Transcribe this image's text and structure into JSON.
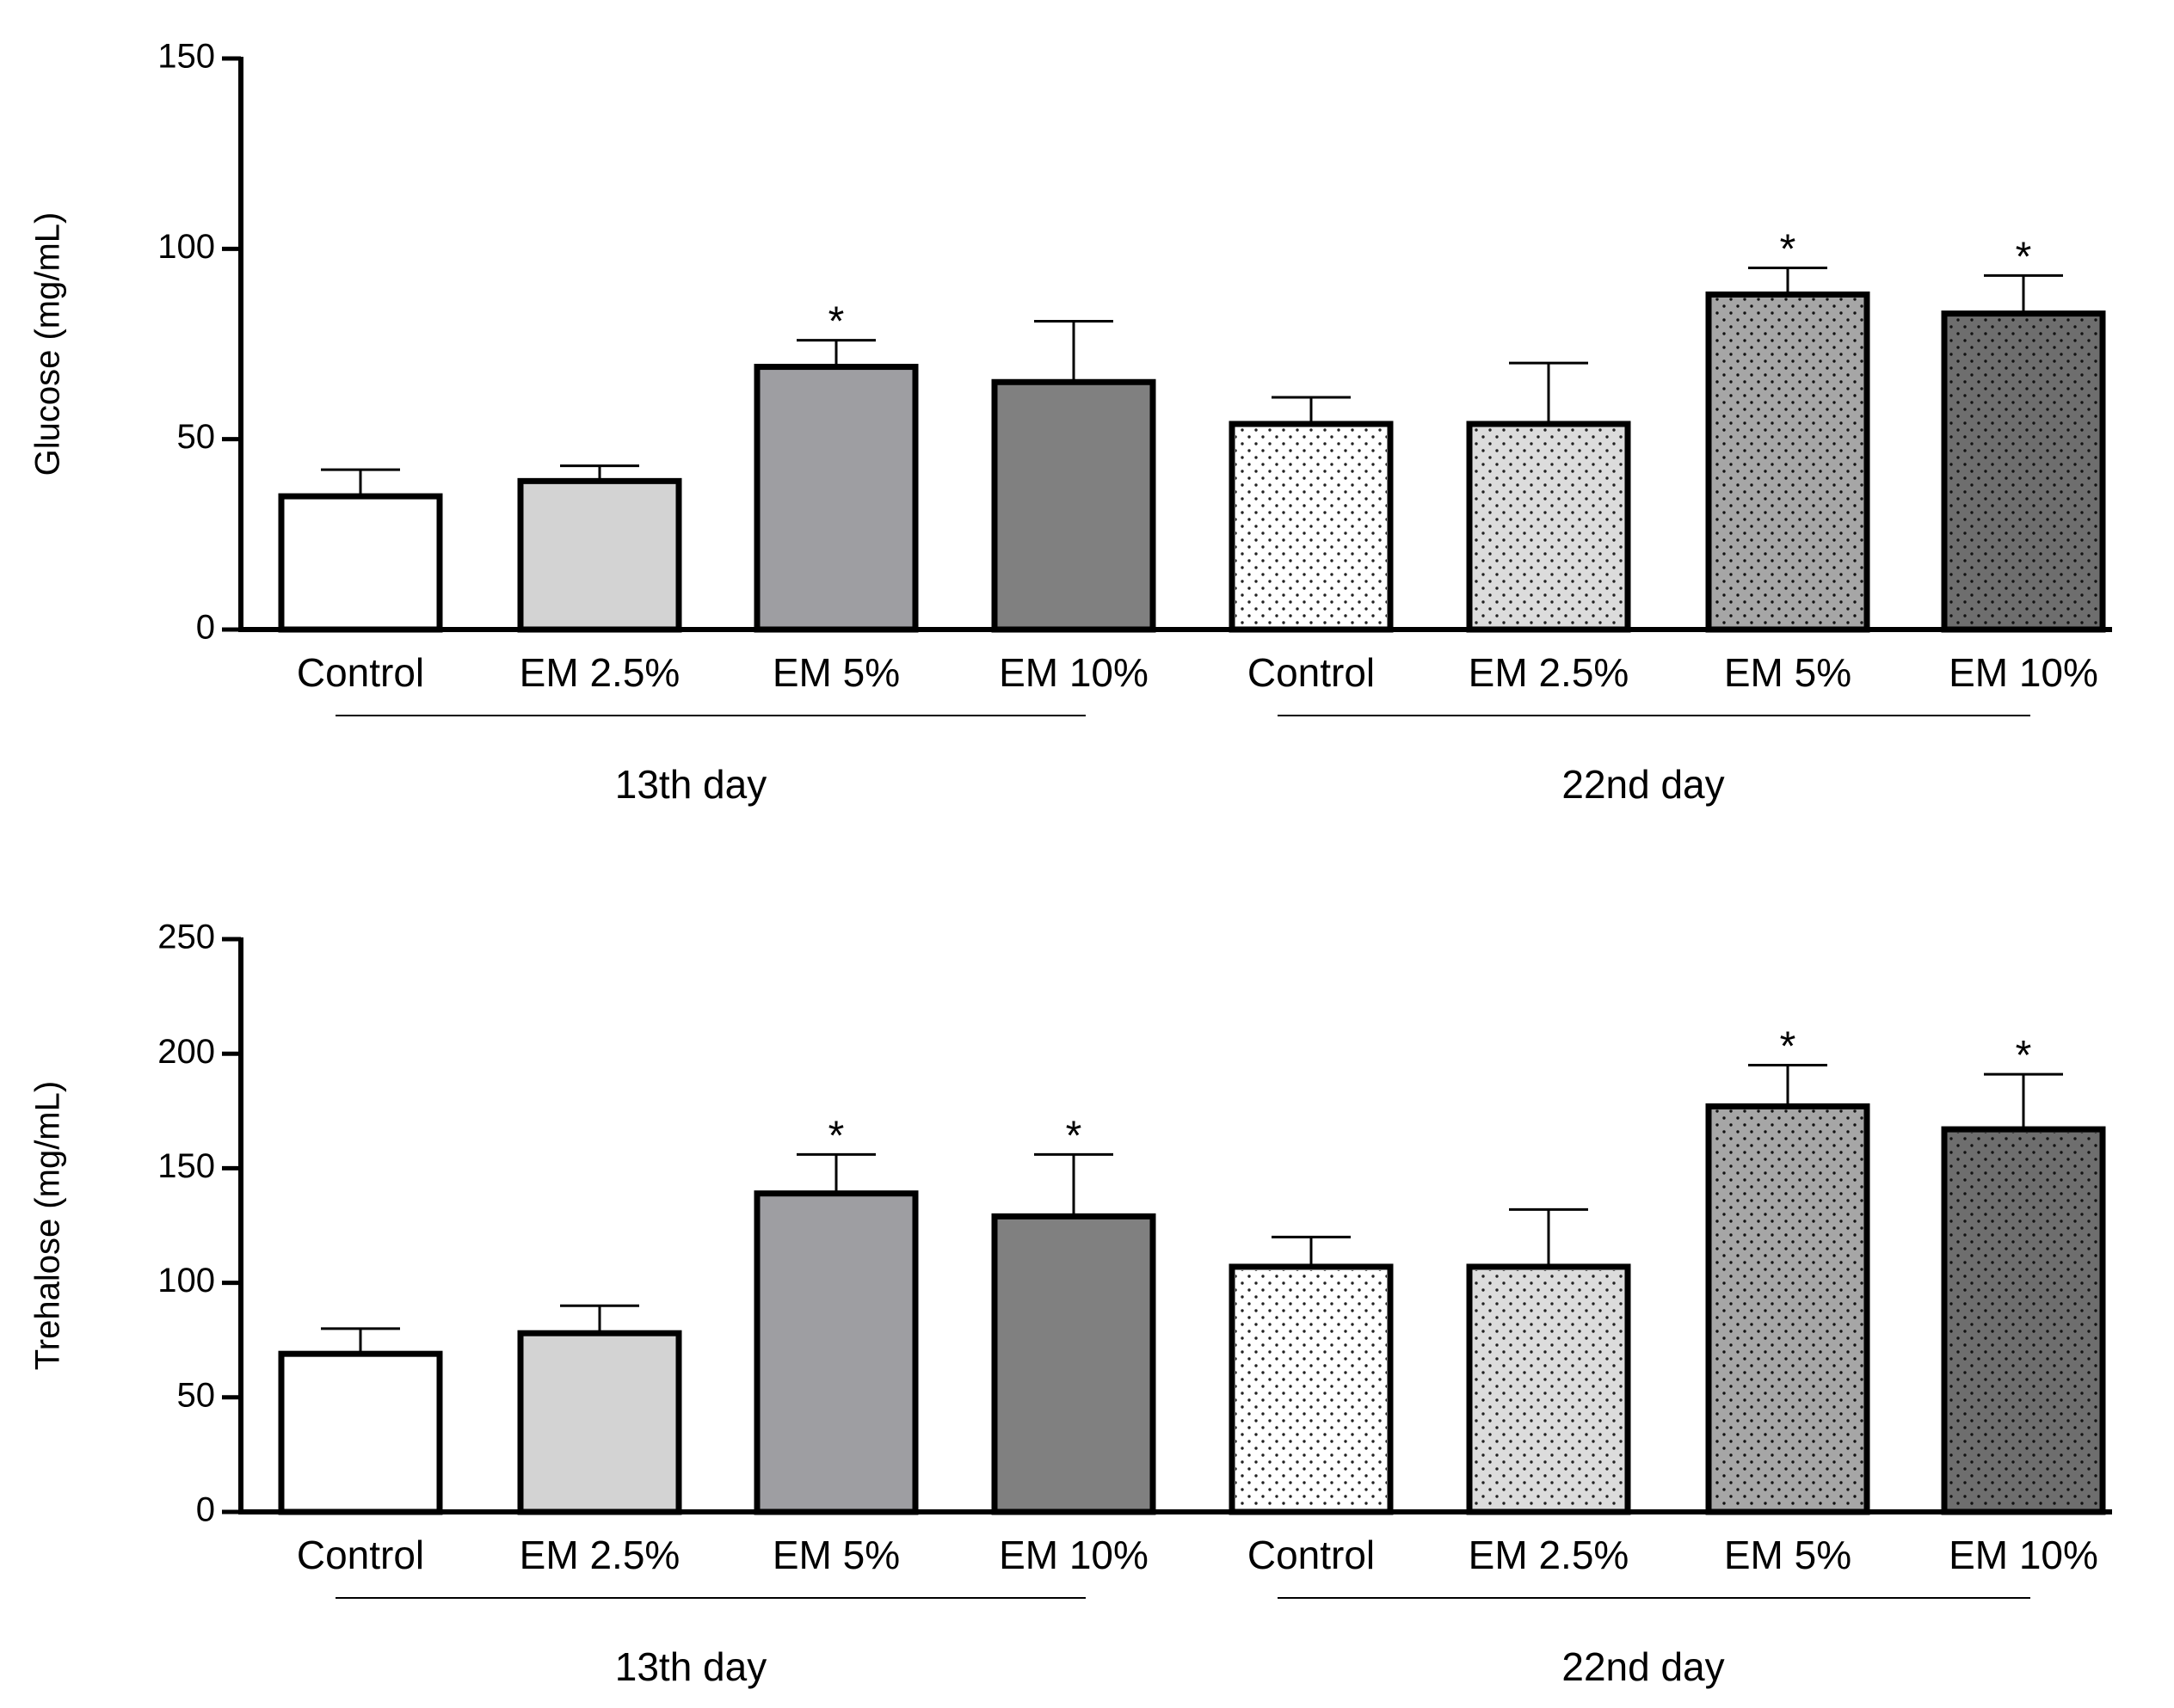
{
  "chart_data": [
    {
      "type": "bar",
      "title": "",
      "xlabel": "",
      "ylabel": "Glucose (mg/mL)",
      "ylim": [
        0,
        150
      ],
      "yticks": [
        0,
        50,
        100,
        150
      ],
      "categories": [
        "Control",
        "EM 2.5%",
        "EM 5%",
        "EM 10%",
        "Control",
        "EM 2.5%",
        "EM 5%",
        "EM 10%"
      ],
      "groups": [
        {
          "label": "13th day",
          "indices": [
            0,
            1,
            2,
            3
          ]
        },
        {
          "label": "22nd day",
          "indices": [
            4,
            5,
            6,
            7
          ]
        }
      ],
      "values": [
        35,
        39,
        69,
        65,
        54,
        54,
        88,
        83
      ],
      "errors": [
        7,
        4,
        7,
        16,
        7,
        16,
        7,
        10
      ],
      "significance": [
        "",
        "",
        "*",
        "",
        "",
        "",
        "*",
        "*"
      ],
      "colors": [
        "#ffffff",
        "#d3d3d3",
        "#9e9ea2",
        "#808080",
        "#ffffff",
        "#dcdcdc",
        "#a6a6a6",
        "#6e6e6e"
      ],
      "patterns": [
        "none",
        "none",
        "none",
        "none",
        "dots",
        "dots",
        "dots",
        "dots"
      ]
    },
    {
      "type": "bar",
      "title": "",
      "xlabel": "",
      "ylabel": "Trehalose (mg/mL)",
      "ylim": [
        0,
        250
      ],
      "yticks": [
        0,
        50,
        100,
        150,
        200,
        250
      ],
      "categories": [
        "Control",
        "EM 2.5%",
        "EM 5%",
        "EM 10%",
        "Control",
        "EM 2.5%",
        "EM 5%",
        "EM 10%"
      ],
      "groups": [
        {
          "label": "13th day",
          "indices": [
            0,
            1,
            2,
            3
          ]
        },
        {
          "label": "22nd day",
          "indices": [
            4,
            5,
            6,
            7
          ]
        }
      ],
      "values": [
        69,
        78,
        139,
        129,
        107,
        107,
        177,
        167
      ],
      "errors": [
        11,
        12,
        17,
        27,
        13,
        25,
        18,
        24
      ],
      "significance": [
        "",
        "",
        "*",
        "*",
        "",
        "",
        "*",
        "*"
      ],
      "colors": [
        "#ffffff",
        "#d3d3d3",
        "#9e9ea2",
        "#808080",
        "#ffffff",
        "#dcdcdc",
        "#a6a6a6",
        "#6e6e6e"
      ],
      "patterns": [
        "none",
        "none",
        "none",
        "none",
        "dots",
        "dots",
        "dots",
        "dots"
      ]
    }
  ]
}
